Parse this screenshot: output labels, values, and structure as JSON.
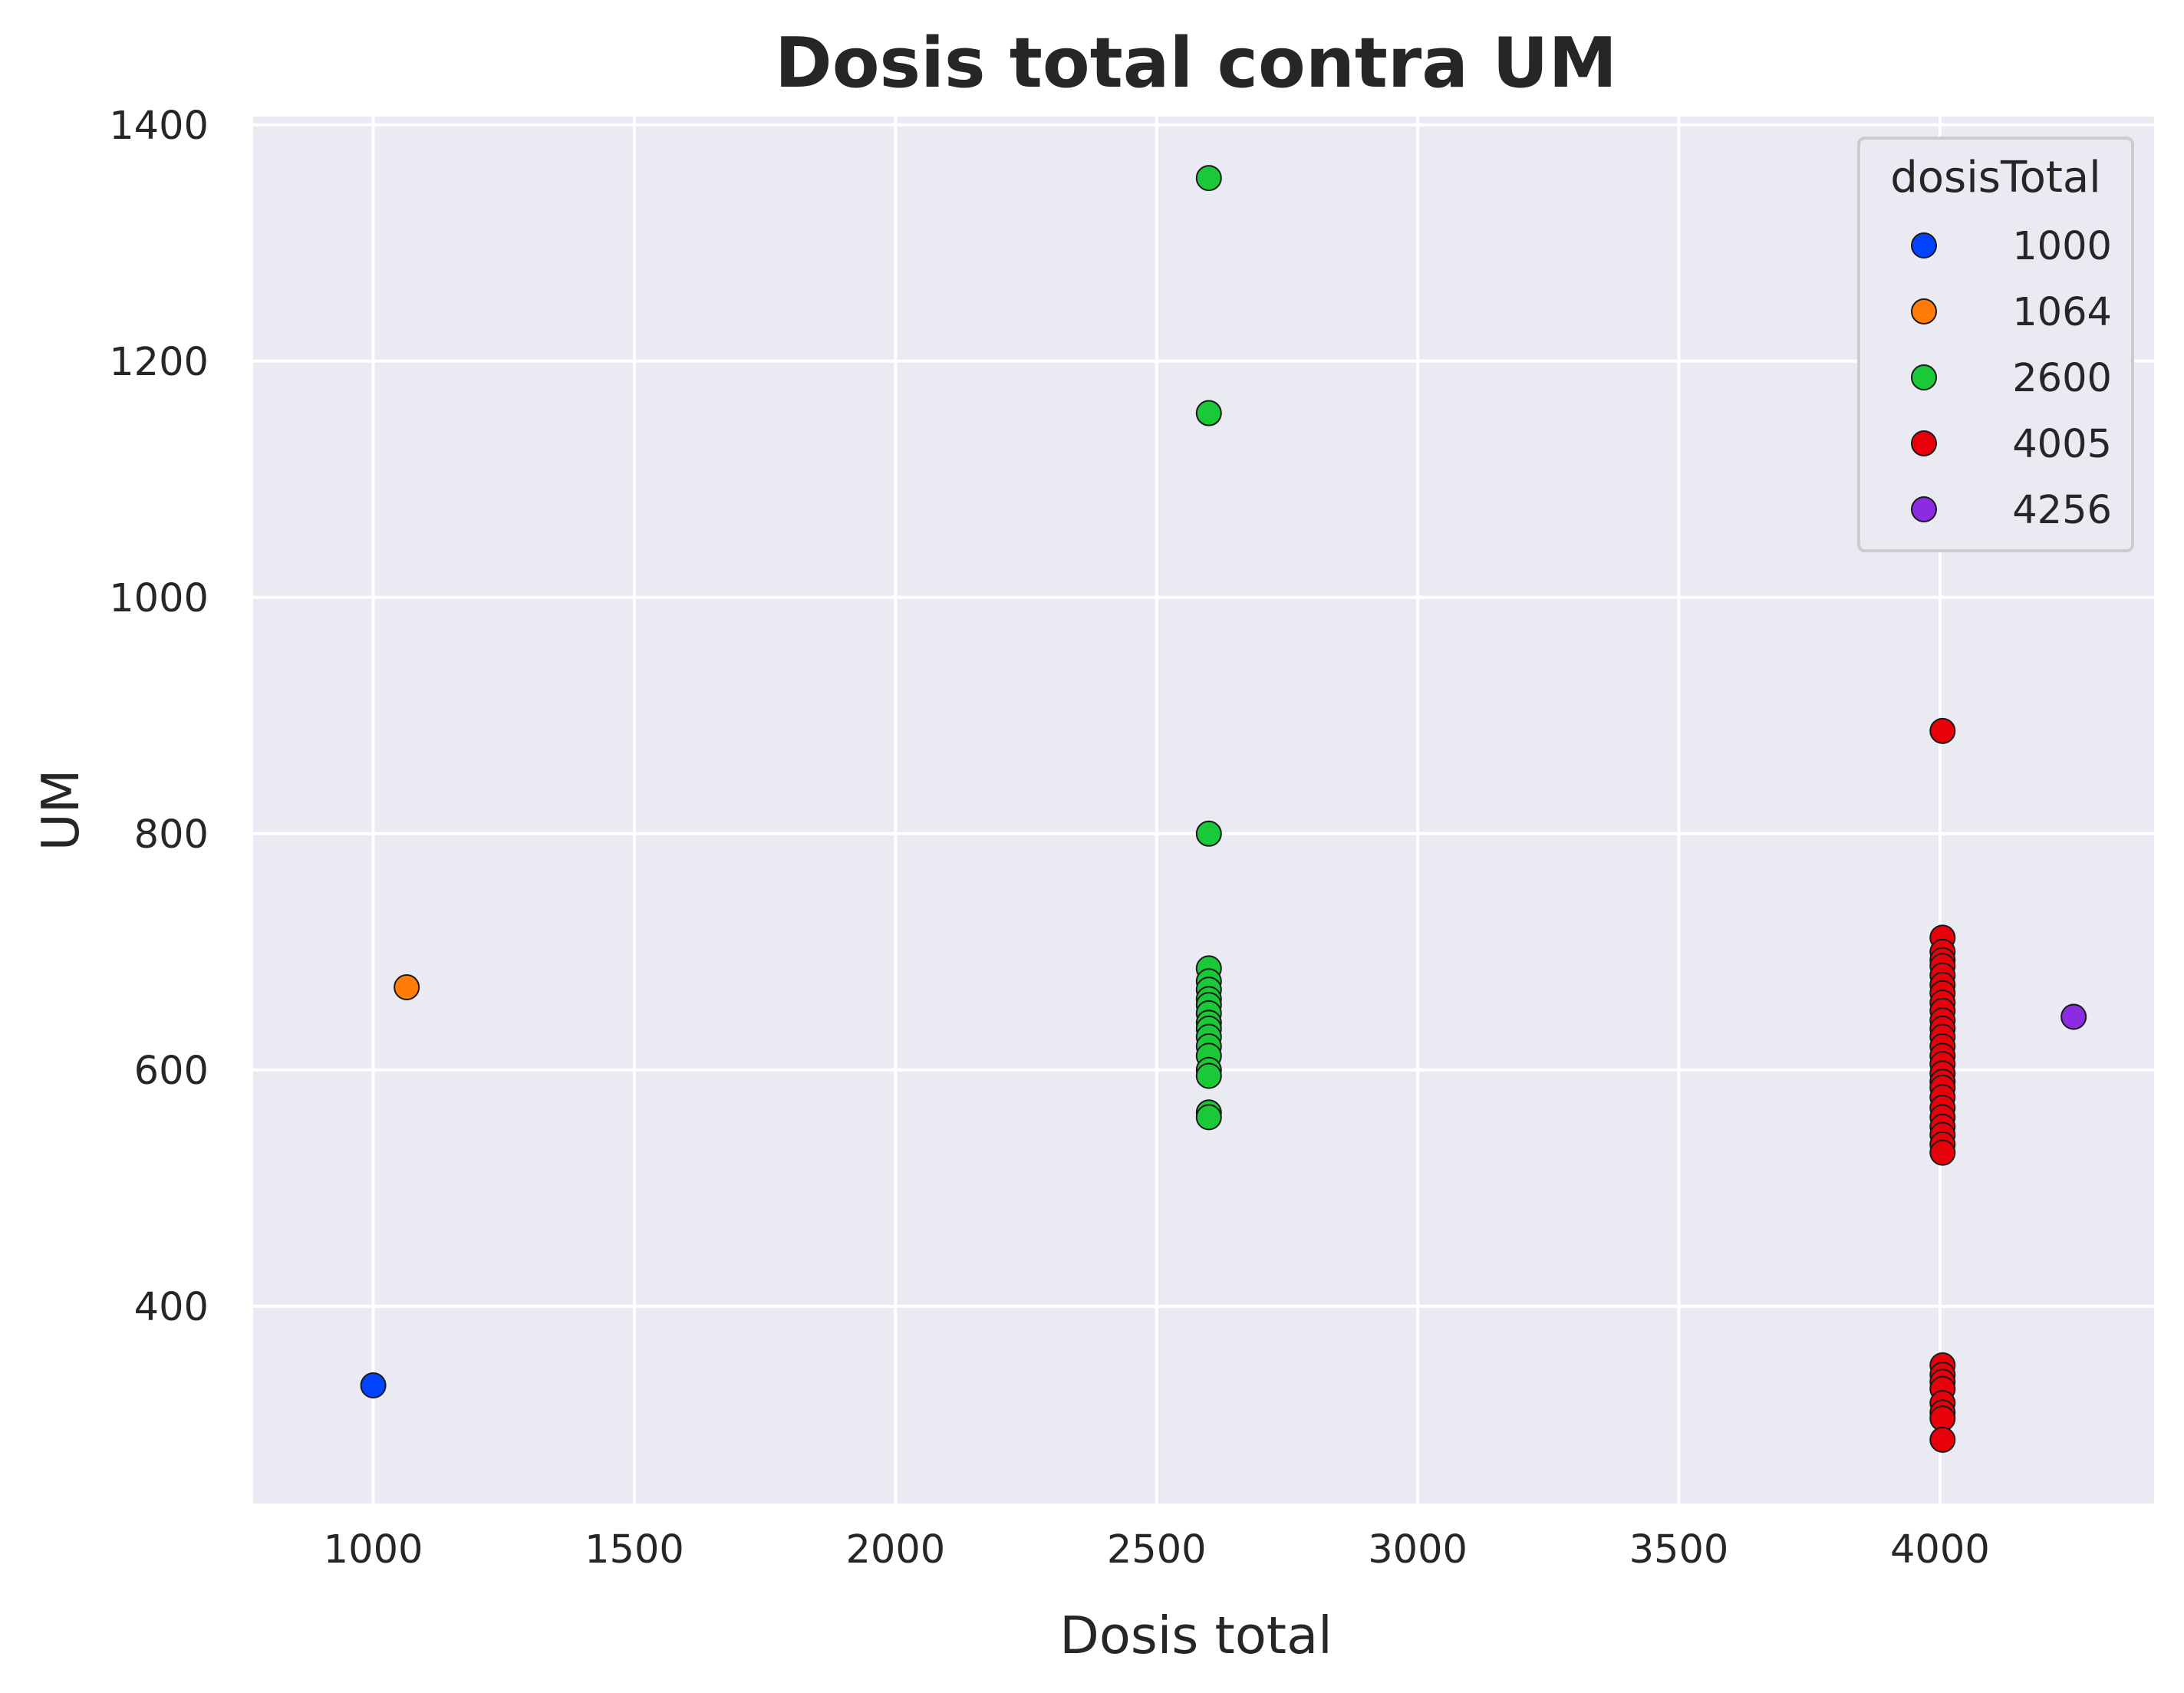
{
  "chart_data": {
    "type": "scatter",
    "title": "Dosis total contra UM",
    "xlabel": "Dosis total",
    "ylabel": "UM",
    "xlim": [
      770,
      4410
    ],
    "ylim": [
      233,
      1407
    ],
    "xticks": [
      1000,
      1500,
      2000,
      2500,
      3000,
      3500,
      4000
    ],
    "yticks": [
      400,
      600,
      800,
      1000,
      1200,
      1400
    ],
    "grid": true,
    "background": "#eaeaf2",
    "legend": {
      "title": "dosisTotal",
      "placement": "top-right"
    },
    "series": [
      {
        "name": "1000",
        "color": "#0143ff",
        "points": [
          [
            1000,
            333
          ]
        ]
      },
      {
        "name": "1064",
        "color": "#ff7c0a",
        "points": [
          [
            1064,
            670
          ]
        ]
      },
      {
        "name": "2600",
        "color": "#1ac938",
        "points": [
          [
            2600,
            1355
          ],
          [
            2600,
            1156
          ],
          [
            2600,
            800
          ],
          [
            2600,
            686
          ],
          [
            2600,
            675
          ],
          [
            2600,
            668
          ],
          [
            2600,
            660
          ],
          [
            2600,
            655
          ],
          [
            2600,
            648
          ],
          [
            2600,
            640
          ],
          [
            2600,
            635
          ],
          [
            2600,
            628
          ],
          [
            2600,
            620
          ],
          [
            2600,
            612
          ],
          [
            2600,
            600
          ],
          [
            2600,
            595
          ],
          [
            2600,
            564
          ],
          [
            2600,
            560
          ]
        ]
      },
      {
        "name": "4005",
        "color": "#e8000b",
        "points": [
          [
            4005,
            887
          ],
          [
            4005,
            712
          ],
          [
            4005,
            700
          ],
          [
            4005,
            693
          ],
          [
            4005,
            688
          ],
          [
            4005,
            680
          ],
          [
            4005,
            672
          ],
          [
            4005,
            665
          ],
          [
            4005,
            657
          ],
          [
            4005,
            650
          ],
          [
            4005,
            642
          ],
          [
            4005,
            635
          ],
          [
            4005,
            628
          ],
          [
            4005,
            620
          ],
          [
            4005,
            612
          ],
          [
            4005,
            605
          ],
          [
            4005,
            597
          ],
          [
            4005,
            590
          ],
          [
            4005,
            585
          ],
          [
            4005,
            577
          ],
          [
            4005,
            568
          ],
          [
            4005,
            560
          ],
          [
            4005,
            552
          ],
          [
            4005,
            545
          ],
          [
            4005,
            537
          ],
          [
            4005,
            530
          ],
          [
            4005,
            350
          ],
          [
            4005,
            342
          ],
          [
            4005,
            336
          ],
          [
            4005,
            330
          ],
          [
            4005,
            318
          ],
          [
            4005,
            310
          ],
          [
            4005,
            305
          ],
          [
            4005,
            287
          ]
        ]
      },
      {
        "name": "4256",
        "color": "#8b2be2",
        "points": [
          [
            4256,
            645
          ]
        ]
      }
    ]
  }
}
